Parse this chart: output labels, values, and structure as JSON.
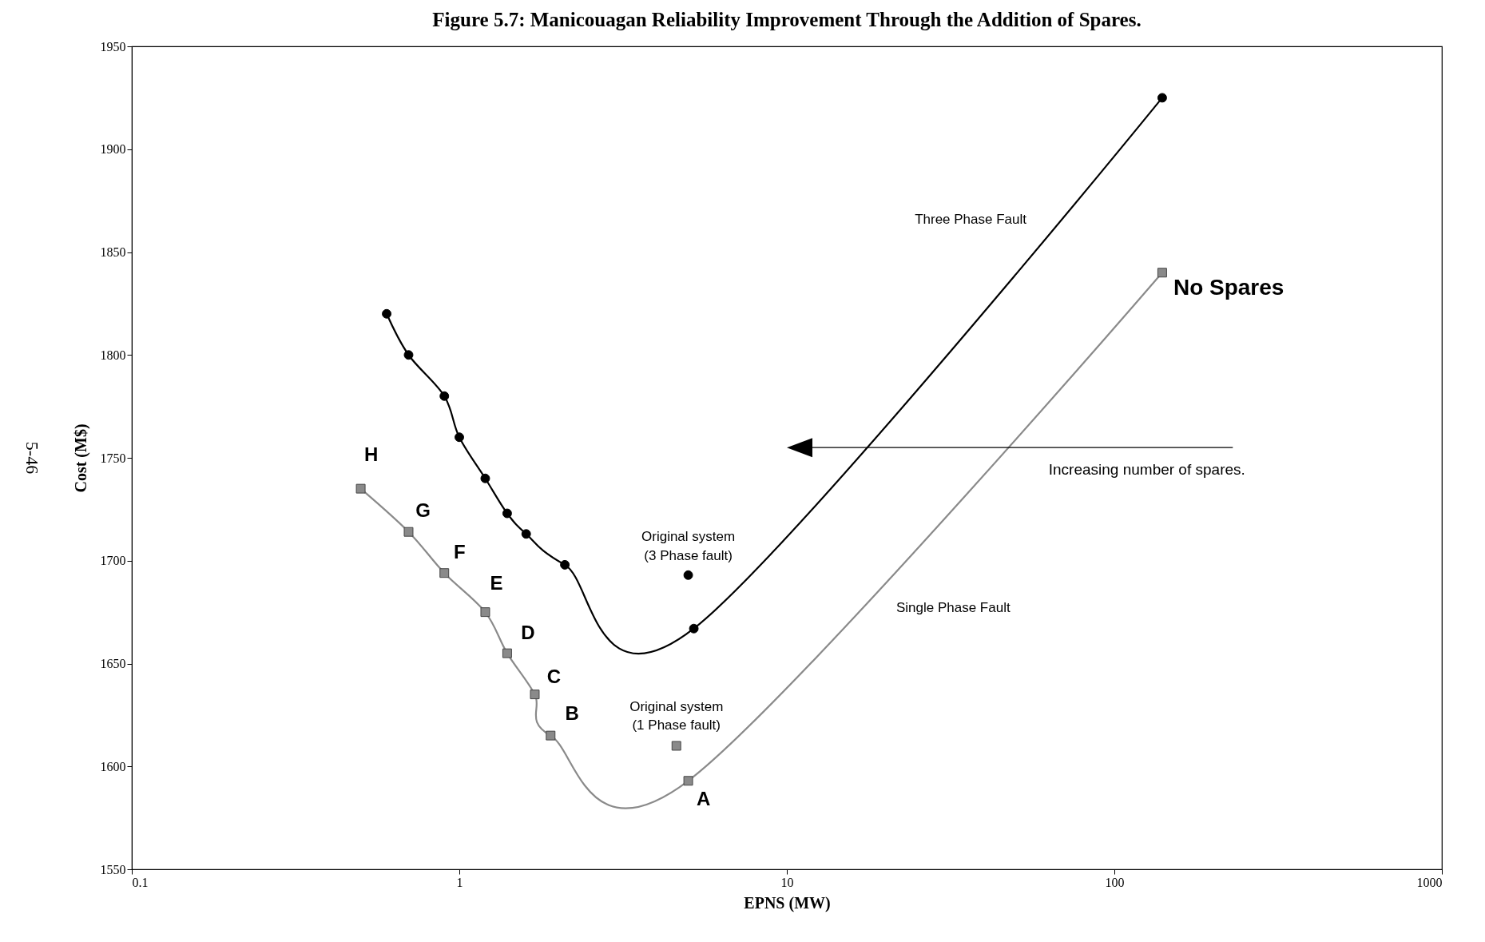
{
  "chart_data": {
    "type": "line",
    "title": "Figure 5.7: Manicouagan Reliability Improvement Through the Addition of Spares.",
    "xlabel": "EPNS (MW)",
    "ylabel": "Cost (M$)",
    "log": "x",
    "xlim": [
      0.1,
      1000
    ],
    "xticks": [
      0.1,
      1,
      10,
      100,
      1000
    ],
    "ylim": [
      1550,
      1950
    ],
    "yticks": [
      1550,
      1600,
      1650,
      1700,
      1750,
      1800,
      1850,
      1900,
      1950
    ],
    "grid": false,
    "legend": false,
    "series": [
      {
        "name": "Three Phase Fault",
        "type": "line",
        "color": "#000000",
        "marker": "circle",
        "line_style": "solid",
        "x": [
          0.6,
          0.7,
          0.9,
          1.0,
          1.2,
          1.4,
          1.6,
          2.1,
          5.2,
          140
        ],
        "values": [
          1820,
          1800,
          1780,
          1760,
          1740,
          1723,
          1713,
          1698,
          1667,
          1925
        ]
      },
      {
        "name": "Single Phase Fault",
        "type": "line",
        "color": "#8a8a8a",
        "marker": "square",
        "line_style": "solid",
        "x": [
          0.5,
          0.7,
          0.9,
          1.2,
          1.4,
          1.7,
          1.9,
          5.0,
          140
        ],
        "values": [
          1735,
          1714,
          1694,
          1675,
          1655,
          1635,
          1615,
          1593,
          1840
        ]
      },
      {
        "type": "scatter",
        "color": "#000000",
        "marker": "circle",
        "x": [
          5.0
        ],
        "values": [
          1693
        ]
      },
      {
        "type": "scatter",
        "color": "#8a8a8a",
        "marker": "square",
        "x": [
          4.6
        ],
        "values": [
          1610
        ]
      }
    ],
    "annotations": [
      {
        "text": "H",
        "x": 0.5,
        "y": 1735
      },
      {
        "text": "G",
        "x": 0.7,
        "y": 1714
      },
      {
        "text": "F",
        "x": 0.9,
        "y": 1694
      },
      {
        "text": "E",
        "x": 1.2,
        "y": 1675
      },
      {
        "text": "D",
        "x": 1.4,
        "y": 1655
      },
      {
        "text": "C",
        "x": 1.7,
        "y": 1635
      },
      {
        "text": "B",
        "x": 1.9,
        "y": 1615
      },
      {
        "text": "A",
        "x": 5.0,
        "y": 1593
      },
      {
        "text": "No Spares",
        "x": 140,
        "y": 1840
      },
      {
        "text": "Original system\n(3 Phase fault)",
        "x": 5.0,
        "y": 1693
      },
      {
        "text": "Original system\n(1 Phase fault)",
        "x": 4.6,
        "y": 1610
      },
      "Increasing number of spares.",
      "5-46"
    ]
  }
}
